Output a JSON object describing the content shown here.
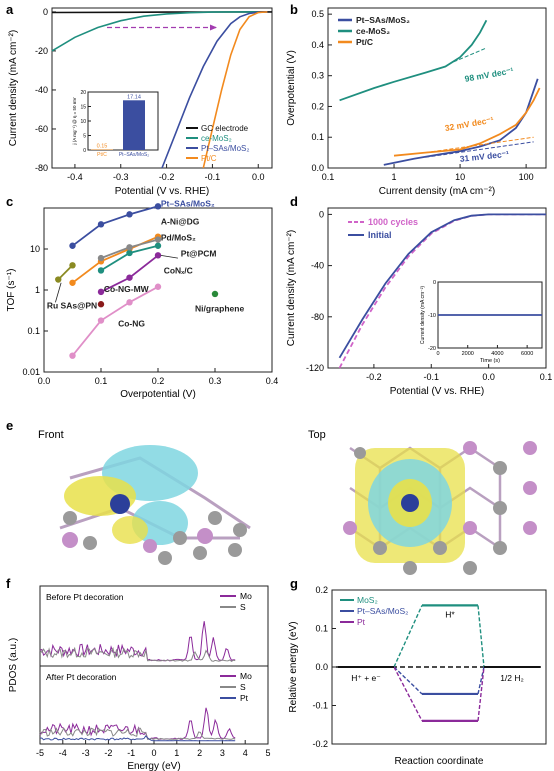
{
  "colors": {
    "blue": "#3b4ea0",
    "teal": "#1f8f7f",
    "orange": "#f28a1e",
    "black": "#111111",
    "purple": "#8b2a9a",
    "magenta": "#d063c8",
    "gray": "#888888",
    "olive": "#8a8a22",
    "darkred": "#8a1a1a",
    "green": "#2a8a3a",
    "pink": "#e08fc8",
    "arrow": "#a23cb0",
    "cyan_lobe": "#7fd6e0",
    "yellow_lobe": "#e8e04a"
  },
  "chart_data": [
    {
      "panel": "a",
      "type": "line",
      "xlabel": "Potential (V vs. RHE)",
      "ylabel": "Current density (mA cm⁻²)",
      "xlim": [
        -0.45,
        0.03
      ],
      "ylim": [
        -80,
        2
      ],
      "xticks": [
        "-0.4",
        "-0.3",
        "-0.2",
        "-0.1",
        "0.0"
      ],
      "yticks": [
        "0",
        "-20",
        "-40",
        "-60",
        "-80"
      ],
      "legend": [
        "GC electrode",
        "ce-MoS₂",
        "Pt–SAs/MoS₂",
        "Pt/C"
      ],
      "series": [
        {
          "name": "GC electrode",
          "color_key": "black",
          "x": [
            -0.45,
            -0.3,
            -0.2,
            -0.1,
            0.0,
            0.03
          ],
          "y": [
            -0.3,
            -0.2,
            -0.1,
            -0.05,
            0,
            0
          ]
        },
        {
          "name": "ce-MoS₂",
          "color_key": "teal",
          "x": [
            -0.45,
            -0.4,
            -0.35,
            -0.3,
            -0.25,
            -0.2,
            -0.15,
            -0.1,
            -0.05,
            0.0
          ],
          "y": [
            -20,
            -13,
            -8,
            -4.5,
            -2.2,
            -1,
            -0.4,
            -0.1,
            0,
            0
          ]
        },
        {
          "name": "Pt–SAs/MoS₂",
          "color_key": "blue",
          "x": [
            -0.21,
            -0.18,
            -0.15,
            -0.12,
            -0.09,
            -0.06,
            -0.04,
            -0.02,
            0.0,
            0.02
          ],
          "y": [
            -80,
            -62,
            -44,
            -28,
            -15,
            -6,
            -2.5,
            -0.8,
            -0.2,
            0
          ]
        },
        {
          "name": "Pt/C",
          "color_key": "orange",
          "x": [
            -0.12,
            -0.1,
            -0.08,
            -0.06,
            -0.04,
            -0.02,
            0.0,
            0.02
          ],
          "y": [
            -80,
            -60,
            -40,
            -22,
            -9,
            -2.5,
            -0.3,
            0
          ]
        }
      ],
      "annotation": {
        "arrow_from": -0.09,
        "arrow_to": -0.33,
        "y": -8
      },
      "inset": {
        "type": "bar",
        "ylabel": "j (A mg⁻¹) @ η = 50 mV",
        "ylim": [
          0,
          20
        ],
        "yticks": [
          "0",
          "5",
          "10",
          "15",
          "20"
        ],
        "categories": [
          "Pt/C",
          "Pt–SAs/MoS₂"
        ],
        "values": [
          0.15,
          17.14
        ],
        "labels": [
          "0.15",
          "17.14"
        ]
      }
    },
    {
      "panel": "b",
      "type": "line",
      "xlabel": "Current density (mA cm⁻²)",
      "ylabel": "Overpotential (V)",
      "xscale": "log",
      "xlim": [
        0.1,
        200
      ],
      "ylim": [
        0,
        0.52
      ],
      "xticks": [
        "0.1",
        "1",
        "10",
        "100"
      ],
      "yticks": [
        "0.0",
        "0.1",
        "0.2",
        "0.3",
        "0.4",
        "0.5"
      ],
      "legend": [
        "Pt–SAs/MoS₂",
        "ce-MoS₂",
        "Pt/C"
      ],
      "series": [
        {
          "name": "Pt–SAs/MoS₂",
          "color_key": "blue",
          "x": [
            0.7,
            2,
            5,
            10,
            20,
            40,
            70,
            100,
            150
          ],
          "y": [
            0.01,
            0.03,
            0.045,
            0.055,
            0.07,
            0.09,
            0.13,
            0.18,
            0.29
          ]
        },
        {
          "name": "ce-MoS₂",
          "color_key": "teal",
          "x": [
            0.15,
            0.5,
            1,
            3,
            6,
            10,
            15,
            20,
            25
          ],
          "y": [
            0.22,
            0.26,
            0.28,
            0.31,
            0.33,
            0.36,
            0.4,
            0.44,
            0.48
          ]
        },
        {
          "name": "Pt/C",
          "color_key": "orange",
          "x": [
            1,
            3,
            10,
            20,
            40,
            70,
            100,
            130,
            160
          ],
          "y": [
            0.04,
            0.05,
            0.06,
            0.08,
            0.11,
            0.14,
            0.18,
            0.22,
            0.26
          ]
        }
      ],
      "annotations": [
        {
          "text": "98 mV dec⁻¹",
          "color_key": "teal"
        },
        {
          "text": "32 mV dec⁻¹",
          "color_key": "orange"
        },
        {
          "text": "31 mV dec⁻¹",
          "color_key": "blue"
        }
      ]
    },
    {
      "panel": "c",
      "type": "scatter",
      "xlabel": "Overpotential (V)",
      "ylabel": "TOF (s⁻¹)",
      "yscale": "log",
      "xlim": [
        0,
        0.4
      ],
      "ylim": [
        0.01,
        100
      ],
      "xticks": [
        "0.0",
        "0.1",
        "0.2",
        "0.3",
        "0.4"
      ],
      "yticks": [
        "0.01",
        "0.1",
        "1",
        "10"
      ],
      "series": [
        {
          "name": "Pt–SAs/MoS₂",
          "color_key": "blue",
          "x": [
            0.05,
            0.1,
            0.15,
            0.2
          ],
          "y": [
            12,
            40,
            70,
            110
          ]
        },
        {
          "name": "A-Ni@DG",
          "color_key": "orange",
          "x": [
            0.05,
            0.1,
            0.15,
            0.2
          ],
          "y": [
            1.5,
            5,
            10,
            20
          ]
        },
        {
          "name": "Pd/MoS₂",
          "color_key": "teal",
          "x": [
            0.1,
            0.15,
            0.2
          ],
          "y": [
            3,
            8,
            12
          ]
        },
        {
          "name": "Pt@PCM",
          "color_key": "purple",
          "x": [
            0.1,
            0.15,
            0.2
          ],
          "y": [
            0.9,
            2,
            7
          ]
        },
        {
          "name": "CoNₓ/C",
          "color_key": "gray",
          "x": [
            0.1,
            0.15,
            0.2
          ],
          "y": [
            6,
            11,
            17
          ]
        },
        {
          "name": "Co-NG-MW",
          "color_key": "darkred",
          "x": [
            0.1
          ],
          "y": [
            0.45
          ]
        },
        {
          "name": "Co-NG",
          "color_key": "pink",
          "x": [
            0.05,
            0.1,
            0.15,
            0.2
          ],
          "y": [
            0.025,
            0.18,
            0.5,
            1.2
          ]
        },
        {
          "name": "Ru SAs@PN",
          "color_key": "olive",
          "x": [
            0.025,
            0.05
          ],
          "y": [
            1.8,
            4
          ]
        },
        {
          "name": "Ni/graphene",
          "color_key": "green",
          "x": [
            0.3
          ],
          "y": [
            0.8
          ]
        }
      ]
    },
    {
      "panel": "d",
      "type": "line",
      "xlabel": "Potential (V vs. RHE)",
      "ylabel": "Current density (mA cm⁻²)",
      "xlim": [
        -0.28,
        0.1
      ],
      "ylim": [
        -120,
        5
      ],
      "xticks": [
        "-0.2",
        "-0.1",
        "0.0",
        "0.1"
      ],
      "yticks": [
        "0",
        "-40",
        "-80",
        "-120"
      ],
      "legend": [
        "1000 cycles",
        "Initial"
      ],
      "series": [
        {
          "name": "1000 cycles",
          "color_key": "magenta",
          "dashed": true,
          "x": [
            -0.26,
            -0.22,
            -0.18,
            -0.14,
            -0.1,
            -0.06,
            -0.03,
            0.0,
            0.1
          ],
          "y": [
            -120,
            -86,
            -57,
            -33,
            -15,
            -5,
            -1.2,
            0,
            0
          ]
        },
        {
          "name": "Initial",
          "color_key": "blue",
          "x": [
            -0.26,
            -0.22,
            -0.18,
            -0.14,
            -0.1,
            -0.06,
            -0.03,
            0.0,
            0.1
          ],
          "y": [
            -112,
            -82,
            -54,
            -31,
            -14,
            -4.5,
            -1,
            0,
            0
          ]
        }
      ],
      "inset": {
        "xlabel": "Time (s)",
        "ylabel": "Current density (mA cm⁻²)",
        "xlim": [
          0,
          7000
        ],
        "ylim": [
          -20,
          0
        ],
        "xticks": [
          "0",
          "2000",
          "4000",
          "6000"
        ],
        "yticks": [
          "0",
          "-10",
          "-20"
        ],
        "value": -10
      }
    },
    {
      "panel": "f",
      "type": "area",
      "xlabel": "Energy (eV)",
      "ylabel": "PDOS (a.u.)",
      "xlim": [
        -5,
        5
      ],
      "xticks": [
        "-5",
        "-4",
        "-3",
        "-2",
        "-1",
        "0",
        "1",
        "2",
        "3",
        "4",
        "5"
      ],
      "subplots": [
        {
          "title": "Before Pt decoration",
          "legend": [
            "Mo",
            "S"
          ]
        },
        {
          "title": "After Pt decoration",
          "legend": [
            "Mo",
            "S",
            "Pt"
          ]
        }
      ]
    },
    {
      "panel": "g",
      "type": "line",
      "xlabel": "Reaction coordinate",
      "ylabel": "Relative energy (eV)",
      "ylim": [
        -0.2,
        0.2
      ],
      "yticks": [
        "0.2",
        "0.1",
        "0.0",
        "-0.1",
        "-0.2"
      ],
      "legend": [
        "MoS₂",
        "Pt–SAs/MoS₂",
        "Pt"
      ],
      "states": [
        "H⁺ + e⁻",
        "H*",
        "1/2 H₂"
      ],
      "series": [
        {
          "name": "MoS₂",
          "color_key": "teal",
          "y": [
            0,
            0.16,
            0
          ]
        },
        {
          "name": "Pt–SAs/MoS₂",
          "color_key": "blue",
          "y": [
            0,
            -0.07,
            0
          ]
        },
        {
          "name": "Pt",
          "color_key": "purple",
          "y": [
            0,
            -0.14,
            0
          ]
        }
      ]
    }
  ],
  "panel_e": {
    "front_label": "Front",
    "top_label": "Top"
  },
  "panel_letters": [
    "a",
    "b",
    "c",
    "d",
    "e",
    "f",
    "g"
  ]
}
